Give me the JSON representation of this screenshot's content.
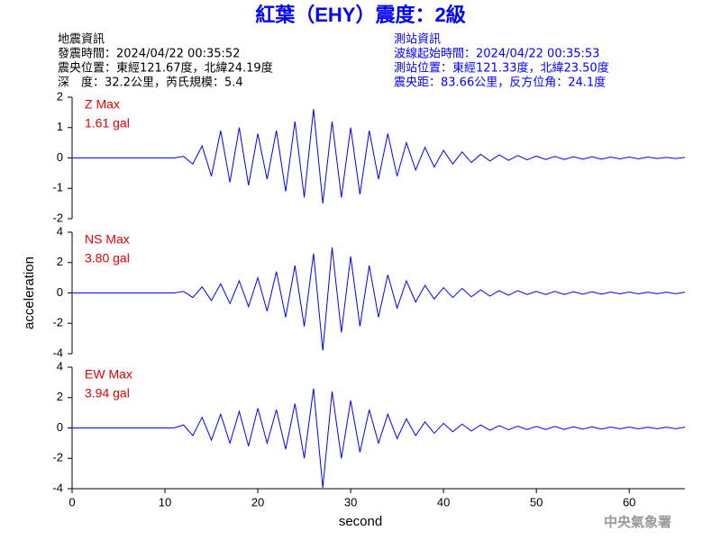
{
  "header": {
    "title": "紅葉（EHY）震度：2級",
    "left": [
      "地震資訊",
      "發震時間：2024/04/22 00:35:52",
      "震央位置：東經121.67度，北緯24.19度",
      "深　度：32.2公里，芮氏規模：5.4"
    ],
    "right": [
      "測站資訊",
      "波線起始時間：2024/04/22 00:35:53",
      "測站位置：東經121.33度，北緯23.50度",
      "震央距：83.66公里，反方位角：24.1度"
    ],
    "footer": "中央氣象署"
  },
  "chart_data": [
    {
      "type": "line",
      "annotation": "Z Max",
      "max_label": "1.61 gal",
      "color": "#0000ff",
      "xlim": [
        0,
        66
      ],
      "ylim": [
        -2,
        2
      ],
      "yticks": [
        -2,
        -1,
        0,
        1,
        2
      ],
      "x": [
        0,
        11,
        12,
        13,
        14,
        15,
        16,
        17,
        18,
        19,
        20,
        21,
        22,
        23,
        24,
        25,
        26,
        27,
        28,
        29,
        30,
        31,
        32,
        33,
        34,
        35,
        36,
        37,
        38,
        39,
        40,
        41,
        42,
        43,
        44,
        45,
        46,
        47,
        48,
        49,
        50,
        51,
        52,
        53,
        54,
        55,
        56,
        57,
        58,
        59,
        60,
        61,
        62,
        63,
        64,
        65,
        66
      ],
      "values": [
        0,
        0,
        0.05,
        -0.2,
        0.4,
        -0.6,
        0.9,
        -0.8,
        1.0,
        -0.9,
        0.8,
        -0.7,
        0.9,
        -1.1,
        1.2,
        -1.3,
        1.61,
        -1.5,
        1.2,
        -1.3,
        1.0,
        -1.2,
        0.9,
        -0.7,
        0.8,
        -0.6,
        0.5,
        -0.4,
        0.35,
        -0.3,
        0.25,
        -0.2,
        0.2,
        -0.15,
        0.12,
        -0.1,
        0.1,
        -0.08,
        0.08,
        -0.06,
        0.06,
        -0.05,
        0.05,
        -0.05,
        0.04,
        -0.04,
        0.04,
        -0.04,
        0.03,
        -0.03,
        0.03,
        -0.03,
        0.03,
        -0.02,
        0.02,
        -0.02,
        0.02
      ]
    },
    {
      "type": "line",
      "annotation": "NS Max",
      "max_label": "3.80 gal",
      "color": "#0000ff",
      "xlim": [
        0,
        66
      ],
      "ylim": [
        -4,
        4
      ],
      "yticks": [
        -4,
        -2,
        0,
        2,
        4
      ],
      "y_label": "acceleration",
      "x": [
        0,
        11,
        12,
        13,
        14,
        15,
        16,
        17,
        18,
        19,
        20,
        21,
        22,
        23,
        24,
        25,
        26,
        27,
        28,
        29,
        30,
        31,
        32,
        33,
        34,
        35,
        36,
        37,
        38,
        39,
        40,
        41,
        42,
        43,
        44,
        45,
        46,
        47,
        48,
        49,
        50,
        51,
        52,
        53,
        54,
        55,
        56,
        57,
        58,
        59,
        60,
        61,
        62,
        63,
        64,
        65,
        66
      ],
      "values": [
        0,
        0,
        0.1,
        -0.3,
        0.4,
        -0.5,
        0.6,
        -0.7,
        0.8,
        -0.9,
        1.0,
        -1.2,
        1.4,
        -1.6,
        1.8,
        -2.2,
        2.6,
        -3.8,
        3.0,
        -2.6,
        2.4,
        -2.2,
        1.8,
        -1.6,
        1.2,
        -1.0,
        0.8,
        -0.6,
        0.5,
        -0.4,
        0.35,
        -0.3,
        0.3,
        -0.25,
        0.2,
        -0.2,
        0.15,
        -0.15,
        0.15,
        -0.1,
        0.1,
        -0.1,
        0.1,
        -0.1,
        0.08,
        -0.08,
        0.08,
        -0.08,
        0.06,
        -0.06,
        0.06,
        -0.06,
        0.05,
        -0.05,
        0.05,
        -0.05,
        0.05
      ]
    },
    {
      "type": "line",
      "annotation": "EW Max",
      "max_label": "3.94 gal",
      "color": "#0000ff",
      "xlim": [
        0,
        66
      ],
      "ylim": [
        -4,
        4
      ],
      "yticks": [
        -4,
        -2,
        0,
        2,
        4
      ],
      "xticks": [
        0,
        10,
        20,
        30,
        40,
        50,
        60
      ],
      "x_label": "second",
      "x": [
        0,
        11,
        12,
        13,
        14,
        15,
        16,
        17,
        18,
        19,
        20,
        21,
        22,
        23,
        24,
        25,
        26,
        27,
        28,
        29,
        30,
        31,
        32,
        33,
        34,
        35,
        36,
        37,
        38,
        39,
        40,
        41,
        42,
        43,
        44,
        45,
        46,
        47,
        48,
        49,
        50,
        51,
        52,
        53,
        54,
        55,
        56,
        57,
        58,
        59,
        60,
        61,
        62,
        63,
        64,
        65,
        66
      ],
      "values": [
        0,
        0,
        0.2,
        -0.5,
        0.7,
        -0.8,
        0.9,
        -1.0,
        1.1,
        -1.2,
        1.3,
        -1.0,
        1.2,
        -1.4,
        1.6,
        -2.0,
        2.6,
        -3.94,
        2.4,
        -2.0,
        1.8,
        -1.6,
        1.2,
        -1.0,
        0.9,
        -0.7,
        0.6,
        -0.5,
        0.4,
        -0.35,
        0.3,
        -0.25,
        0.25,
        -0.2,
        0.2,
        -0.15,
        0.15,
        -0.12,
        0.12,
        -0.1,
        0.1,
        -0.1,
        0.1,
        -0.1,
        0.08,
        -0.08,
        0.08,
        -0.08,
        0.06,
        -0.06,
        0.06,
        -0.06,
        0.05,
        -0.05,
        0.05,
        -0.05,
        0.05
      ]
    }
  ]
}
